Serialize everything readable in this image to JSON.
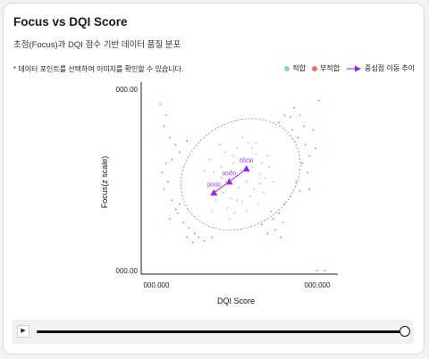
{
  "header": {
    "title": "Focus vs DQI Score",
    "subtitle": "초점(Focus)과 DQI 점수 기반 데이터 품질 분포",
    "note": "* 데이터 포인트를 선택하여 이미지를 확인할 수 있습니다."
  },
  "legend": {
    "pass": "적합",
    "fail": "부적합",
    "trend": "중심점 이동 추이"
  },
  "colors": {
    "pass": "#7fd8c8",
    "fail": "#f06b6b",
    "trend": "#a020f0",
    "ellipse": "#888888"
  },
  "player": {
    "play_icon": "play-icon"
  },
  "chart_data": {
    "type": "scatter",
    "xlabel": "DQI Score",
    "ylabel": "Focus(z scale)",
    "x_ticks": [
      "000.000",
      "000.000"
    ],
    "y_ticks": [
      "000.00",
      "000.00"
    ],
    "xlim": [
      0,
      1
    ],
    "ylim": [
      0,
      1
    ],
    "series": [
      {
        "name": "적합",
        "points": [
          [
            0.36,
            0.62
          ],
          [
            0.38,
            0.55
          ],
          [
            0.4,
            0.48
          ],
          [
            0.42,
            0.58
          ],
          [
            0.44,
            0.66
          ],
          [
            0.46,
            0.52
          ],
          [
            0.48,
            0.6
          ],
          [
            0.5,
            0.68
          ],
          [
            0.52,
            0.56
          ],
          [
            0.54,
            0.63
          ],
          [
            0.56,
            0.71
          ],
          [
            0.58,
            0.58
          ],
          [
            0.6,
            0.65
          ],
          [
            0.62,
            0.54
          ],
          [
            0.43,
            0.44
          ],
          [
            0.47,
            0.41
          ],
          [
            0.51,
            0.47
          ],
          [
            0.55,
            0.5
          ],
          [
            0.59,
            0.46
          ],
          [
            0.63,
            0.6
          ],
          [
            0.39,
            0.4
          ],
          [
            0.45,
            0.36
          ],
          [
            0.49,
            0.33
          ],
          [
            0.53,
            0.39
          ],
          [
            0.57,
            0.42
          ],
          [
            0.61,
            0.38
          ],
          [
            0.65,
            0.52
          ],
          [
            0.67,
            0.58
          ],
          [
            0.41,
            0.7
          ],
          [
            0.53,
            0.74
          ],
          [
            0.35,
            0.47
          ],
          [
            0.44,
            0.5
          ],
          [
            0.5,
            0.53
          ],
          [
            0.56,
            0.55
          ],
          [
            0.62,
            0.49
          ],
          [
            0.48,
            0.64
          ],
          [
            0.58,
            0.68
          ],
          [
            0.66,
            0.64
          ],
          [
            0.37,
            0.34
          ],
          [
            0.46,
            0.3
          ],
          [
            0.52,
            0.62
          ],
          [
            0.6,
            0.71
          ],
          [
            0.64,
            0.44
          ],
          [
            0.42,
            0.52
          ],
          [
            0.55,
            0.34
          ],
          [
            0.33,
            0.56
          ],
          [
            0.69,
            0.5
          ],
          [
            0.47,
            0.56
          ],
          [
            0.57,
            0.61
          ],
          [
            0.5,
            0.4
          ]
        ]
      },
      {
        "name": "부적합",
        "points": [
          [
            0.1,
            0.92
          ],
          [
            0.13,
            0.86
          ],
          [
            0.12,
            0.8
          ],
          [
            0.11,
            0.55
          ],
          [
            0.14,
            0.5
          ],
          [
            0.12,
            0.46
          ],
          [
            0.16,
            0.4
          ],
          [
            0.18,
            0.35
          ],
          [
            0.15,
            0.3
          ],
          [
            0.19,
            0.33
          ],
          [
            0.22,
            0.28
          ],
          [
            0.25,
            0.25
          ],
          [
            0.28,
            0.22
          ],
          [
            0.3,
            0.2
          ],
          [
            0.33,
            0.18
          ],
          [
            0.24,
            0.2
          ],
          [
            0.27,
            0.17
          ],
          [
            0.16,
            0.62
          ],
          [
            0.2,
            0.66
          ],
          [
            0.24,
            0.72
          ],
          [
            0.18,
            0.7
          ],
          [
            0.13,
            0.6
          ],
          [
            0.72,
            0.82
          ],
          [
            0.75,
            0.86
          ],
          [
            0.78,
            0.85
          ],
          [
            0.8,
            0.9
          ],
          [
            0.83,
            0.86
          ],
          [
            0.85,
            0.8
          ],
          [
            0.79,
            0.78
          ],
          [
            0.82,
            0.74
          ],
          [
            0.86,
            0.7
          ],
          [
            0.88,
            0.64
          ],
          [
            0.84,
            0.6
          ],
          [
            0.87,
            0.55
          ],
          [
            0.81,
            0.5
          ],
          [
            0.83,
            0.45
          ],
          [
            0.78,
            0.42
          ],
          [
            0.75,
            0.38
          ],
          [
            0.72,
            0.33
          ],
          [
            0.69,
            0.3
          ],
          [
            0.74,
            0.28
          ],
          [
            0.7,
            0.24
          ],
          [
            0.66,
            0.22
          ],
          [
            0.63,
            0.27
          ],
          [
            0.73,
            0.2
          ],
          [
            0.9,
            0.78
          ],
          [
            0.92,
            0.02
          ],
          [
            0.96,
            0.02
          ],
          [
            0.93,
            0.94
          ],
          [
            0.15,
            0.74
          ],
          [
            0.37,
            0.2
          ],
          [
            0.88,
            0.46
          ],
          [
            0.91,
            0.68
          ],
          [
            0.68,
            0.34
          ],
          [
            0.2,
            0.38
          ]
        ]
      }
    ],
    "trend": {
      "points": [
        [
          0.38,
          0.44
        ],
        [
          0.46,
          0.5
        ],
        [
          0.55,
          0.57
        ]
      ],
      "labels": [
        "00/00",
        "00/00",
        "00/00"
      ]
    },
    "ellipse": {
      "center": [
        0.52,
        0.54
      ],
      "rx": 0.33,
      "ry": 0.28,
      "rotation": -35
    }
  }
}
